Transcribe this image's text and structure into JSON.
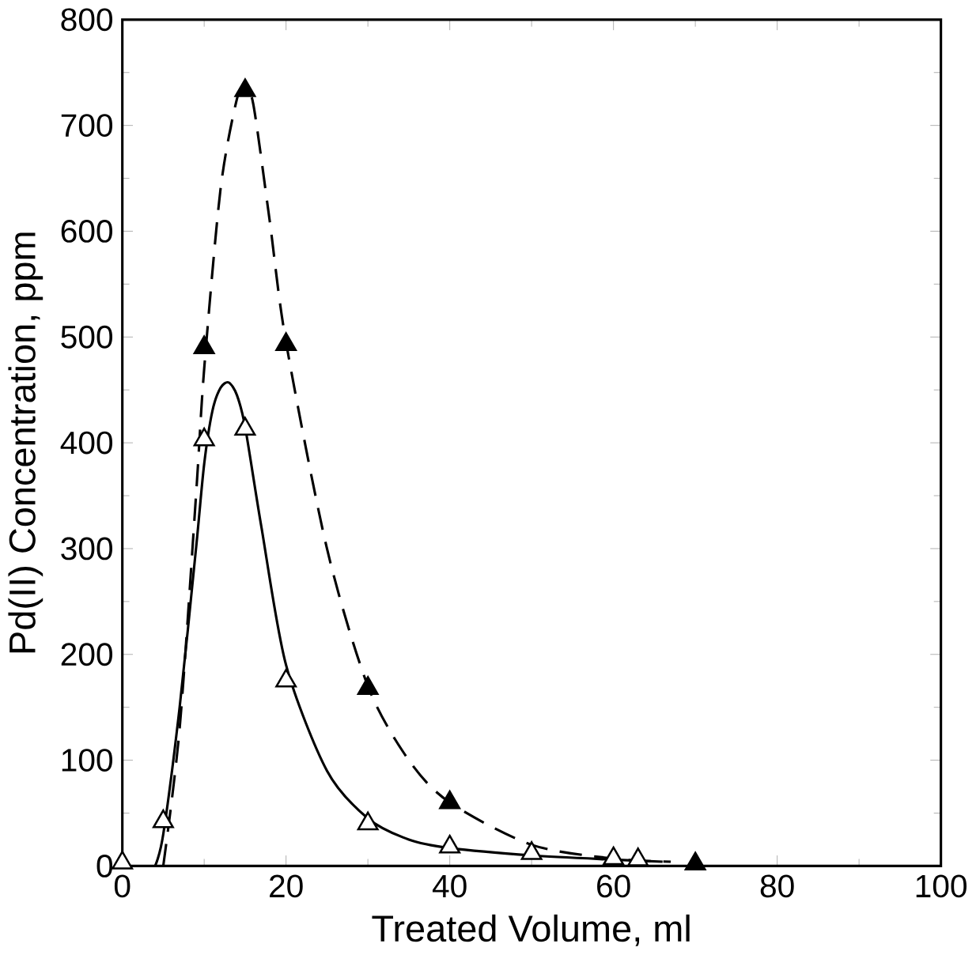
{
  "chart_data": {
    "type": "scatter",
    "xlabel": "Treated Volume, ml",
    "ylabel": "Pd(II) Concentration, ppm",
    "xlim": [
      0,
      100
    ],
    "xticks": [
      0,
      20,
      40,
      60,
      80,
      100
    ],
    "ylim": [
      0,
      800
    ],
    "yticks": [
      0,
      100,
      200,
      300,
      400,
      500,
      600,
      700,
      800
    ],
    "grid": false,
    "marker": "triangle",
    "series": [
      {
        "color": "#000000",
        "x": [
          0,
          5,
          10,
          15,
          20,
          30,
          40,
          50,
          60,
          63
        ],
        "values": [
          3,
          42,
          403,
          413,
          175,
          40,
          18,
          12,
          7,
          6
        ]
      },
      {
        "color": "#000000",
        "x": [
          10,
          15,
          20,
          30,
          40,
          70
        ],
        "values": [
          490,
          733,
          493,
          168,
          60,
          2
        ]
      },
      {
        "type": "line",
        "color": "#000000",
        "marker": "none",
        "line_style": "solid",
        "x": [
          4,
          5,
          7,
          9,
          10,
          11,
          12,
          13,
          14,
          15,
          17,
          20,
          25,
          30,
          35,
          40,
          50,
          60,
          66
        ],
        "values": [
          0,
          30,
          150,
          300,
          380,
          430,
          452,
          457,
          445,
          415,
          320,
          190,
          90,
          45,
          25,
          17,
          10,
          6,
          4
        ]
      },
      {
        "type": "line",
        "color": "#000000",
        "marker": "none",
        "line_style": "dashed",
        "x": [
          5,
          7,
          9,
          10,
          12,
          14,
          15,
          16,
          18,
          20,
          25,
          30,
          35,
          40,
          50,
          60,
          67
        ],
        "values": [
          0,
          130,
          350,
          470,
          640,
          725,
          733,
          720,
          610,
          495,
          300,
          170,
          100,
          60,
          20,
          7,
          4
        ]
      }
    ]
  }
}
